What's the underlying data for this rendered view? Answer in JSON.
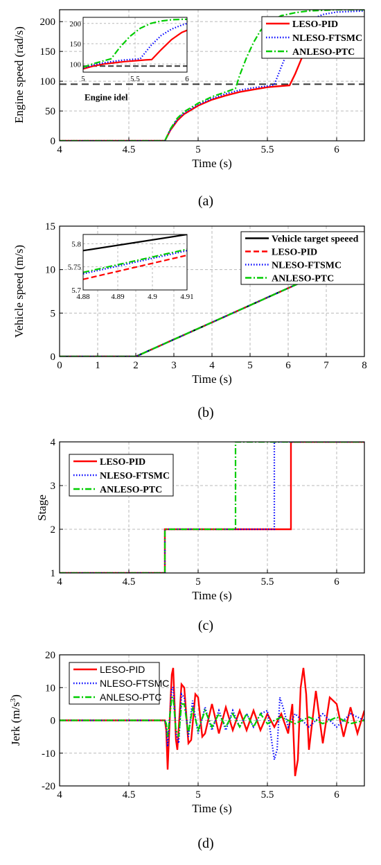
{
  "chart_data": [
    {
      "id": "a",
      "type": "line",
      "caption": "(a)",
      "xlabel": "Time (s)",
      "ylabel": "Engine speed (rad/s)",
      "xlim": [
        4,
        6.2
      ],
      "ylim": [
        0,
        220
      ],
      "xticks": [
        4,
        4.5,
        5,
        5.5,
        6
      ],
      "xtick_labels": [
        "4",
        "4.5",
        "5",
        "5.5",
        "6"
      ],
      "yticks": [
        0,
        50,
        100,
        150,
        200
      ],
      "ytick_labels": [
        "0",
        "50",
        "100",
        "150",
        "200"
      ],
      "grid": true,
      "legend_position": "top-right",
      "annotation": {
        "text": "Engine idel",
        "x": 4.18,
        "y": 68
      },
      "reference_line": {
        "y": 95,
        "style": "dashed",
        "color": "#333333"
      },
      "series": [
        {
          "name": "LESO-PID",
          "color": "#ff0000",
          "style": "solid",
          "x": [
            4.0,
            4.76,
            4.8,
            4.85,
            4.9,
            5.0,
            5.1,
            5.2,
            5.3,
            5.4,
            5.5,
            5.6,
            5.66,
            5.7,
            5.75,
            5.8,
            5.85,
            5.9,
            5.95,
            6.0,
            6.2
          ],
          "y": [
            0,
            0,
            18,
            34,
            45,
            59,
            69,
            76,
            82,
            86,
            90,
            92,
            93,
            112,
            140,
            163,
            180,
            192,
            200,
            205,
            207
          ]
        },
        {
          "name": "NLESO-FTSMC",
          "color": "#0000ff",
          "style": "dotted",
          "x": [
            4.0,
            4.76,
            4.8,
            4.85,
            4.9,
            5.0,
            5.1,
            5.2,
            5.3,
            5.4,
            5.5,
            5.55,
            5.6,
            5.65,
            5.7,
            5.75,
            5.8,
            5.9,
            6.0,
            6.2
          ],
          "y": [
            0,
            0,
            19,
            36,
            47,
            61,
            71,
            79,
            85,
            89,
            92,
            94,
            124,
            152,
            175,
            192,
            202,
            212,
            216,
            218
          ]
        },
        {
          "name": "ANLESO-PTC",
          "color": "#00cc00",
          "style": "dashdot",
          "x": [
            4.0,
            4.76,
            4.8,
            4.85,
            4.9,
            5.0,
            5.1,
            5.2,
            5.27,
            5.3,
            5.35,
            5.4,
            5.45,
            5.5,
            5.6,
            5.7,
            5.8,
            6.0,
            6.2
          ],
          "y": [
            0,
            0,
            20,
            38,
            49,
            63,
            74,
            82,
            88,
            110,
            140,
            165,
            185,
            198,
            210,
            215,
            218,
            220,
            220
          ]
        }
      ],
      "inset": {
        "xlim": [
          5,
          6
        ],
        "ylim": [
          80,
          215
        ],
        "xticks": [
          5,
          5.5,
          6
        ],
        "xtick_labels": [
          "5",
          "5.5",
          "6"
        ],
        "yticks": [
          100,
          150,
          200
        ],
        "ytick_labels": [
          "100",
          "150",
          "200"
        ],
        "reference_line": {
          "y": 95
        },
        "series": [
          {
            "name": "LESO-PID",
            "x": [
              5.0,
              5.1,
              5.2,
              5.3,
              5.4,
              5.5,
              5.6,
              5.66,
              5.75,
              5.85,
              5.95,
              6.0
            ],
            "y": [
              88,
              95,
              100,
              103,
              106,
              108,
              110,
              111,
              135,
              160,
              178,
              183
            ]
          },
          {
            "name": "NLESO-FTSMC",
            "x": [
              5.0,
              5.1,
              5.2,
              5.3,
              5.4,
              5.5,
              5.55,
              5.65,
              5.75,
              5.85,
              5.95,
              6.0
            ],
            "y": [
              90,
              98,
              103,
              107,
              110,
              112,
              113,
              145,
              170,
              186,
              196,
              200
            ]
          },
          {
            "name": "ANLESO-PTC",
            "x": [
              5.0,
              5.1,
              5.2,
              5.27,
              5.35,
              5.45,
              5.55,
              5.65,
              5.75,
              5.85,
              5.95,
              6.0
            ],
            "y": [
              92,
              101,
              108,
              113,
              140,
              168,
              188,
              200,
              206,
              209,
              210,
              210
            ]
          }
        ]
      }
    },
    {
      "id": "b",
      "type": "line",
      "caption": "(b)",
      "xlabel": "Time (s)",
      "ylabel": "Vehicle speed (m/s)",
      "xlim": [
        0,
        8
      ],
      "ylim": [
        0,
        15
      ],
      "xticks": [
        0,
        1,
        2,
        3,
        4,
        5,
        6,
        7,
        8
      ],
      "xtick_labels": [
        "0",
        "1",
        "2",
        "3",
        "4",
        "5",
        "6",
        "7",
        "8"
      ],
      "yticks": [
        0,
        5,
        10,
        15
      ],
      "ytick_labels": [
        "0",
        "5",
        "10",
        "15"
      ],
      "grid": true,
      "legend_position": "top-right",
      "series": [
        {
          "name": "Vehicle target speeed",
          "color": "#000000",
          "style": "solid",
          "x": [
            0,
            2,
            8
          ],
          "y": [
            0,
            0,
            11.8
          ]
        },
        {
          "name": "LESO-PID",
          "color": "#ff0000",
          "style": "dashed",
          "x": [
            0,
            2,
            8
          ],
          "y": [
            0,
            0,
            11.8
          ]
        },
        {
          "name": "NLESO-FTSMC",
          "color": "#0000ff",
          "style": "dotted",
          "x": [
            0,
            2,
            8
          ],
          "y": [
            0,
            0,
            11.8
          ]
        },
        {
          "name": "ANLESO-PTC",
          "color": "#00cc00",
          "style": "dashdot",
          "x": [
            0,
            2,
            8
          ],
          "y": [
            0,
            0,
            11.8
          ]
        }
      ],
      "inset": {
        "xlim": [
          4.88,
          4.91
        ],
        "ylim": [
          5.7,
          5.82
        ],
        "xticks": [
          4.88,
          4.89,
          4.9,
          4.91
        ],
        "xtick_labels": [
          "4.88",
          "4.89",
          "4.9",
          "4.91"
        ],
        "yticks": [
          5.7,
          5.75,
          5.8
        ],
        "ytick_labels": [
          "5.7",
          "5.75",
          "5.8"
        ],
        "series": [
          {
            "name": "Vehicle target speeed",
            "x": [
              4.88,
              4.91
            ],
            "y": [
              5.785,
              5.82
            ]
          },
          {
            "name": "LESO-PID",
            "x": [
              4.88,
              4.91
            ],
            "y": [
              5.723,
              5.775
            ]
          },
          {
            "name": "NLESO-FTSMC",
            "x": [
              4.88,
              4.91
            ],
            "y": [
              5.735,
              5.785
            ]
          },
          {
            "name": "ANLESO-PTC",
            "x": [
              4.88,
              4.91
            ],
            "y": [
              5.738,
              5.788
            ]
          }
        ]
      }
    },
    {
      "id": "c",
      "type": "line",
      "caption": "(c)",
      "xlabel": "Time (s)",
      "ylabel": "Stage",
      "xlim": [
        4,
        6.2
      ],
      "ylim": [
        1,
        4
      ],
      "xticks": [
        4,
        4.5,
        5,
        5.5,
        6
      ],
      "xtick_labels": [
        "4",
        "4.5",
        "5",
        "5.5",
        "6"
      ],
      "yticks": [
        1,
        2,
        3,
        4
      ],
      "ytick_labels": [
        "1",
        "2",
        "3",
        "4"
      ],
      "grid": true,
      "legend_position": "top-left",
      "series": [
        {
          "name": "LESO-PID",
          "color": "#ff0000",
          "style": "solid",
          "x": [
            4,
            4.76,
            4.76,
            5.67,
            5.67,
            6.2
          ],
          "y": [
            1,
            1,
            2,
            2,
            4,
            4
          ]
        },
        {
          "name": "NLESO-FTSMC",
          "color": "#0000ff",
          "style": "dotted",
          "x": [
            4,
            4.76,
            4.76,
            5.55,
            5.55,
            6.2
          ],
          "y": [
            1,
            1,
            2,
            2,
            4,
            4
          ]
        },
        {
          "name": "ANLESO-PTC",
          "color": "#00cc00",
          "style": "dashdot",
          "x": [
            4,
            4.76,
            4.76,
            5.27,
            5.27,
            6.2
          ],
          "y": [
            1,
            1,
            2,
            2,
            4,
            4
          ]
        }
      ]
    },
    {
      "id": "d",
      "type": "line",
      "caption": "(d)",
      "xlabel": "Time (s)",
      "ylabel": "Jerk (m/s",
      "ylabel_superscript": "3",
      "xlim": [
        4,
        6.2
      ],
      "ylim": [
        -20,
        20
      ],
      "xticks": [
        4,
        4.5,
        5,
        5.5,
        6
      ],
      "xtick_labels": [
        "4",
        "4.5",
        "5",
        "5.5",
        "6"
      ],
      "yticks": [
        -20,
        -10,
        0,
        10,
        20
      ],
      "ytick_labels": [
        "-20",
        "-10",
        "0",
        "10",
        "20"
      ],
      "grid": true,
      "legend_position": "top-left",
      "series": [
        {
          "name": "LESO-PID",
          "color": "#ff0000",
          "style": "solid",
          "x": [
            4.0,
            4.76,
            4.77,
            4.78,
            4.8,
            4.81,
            4.82,
            4.84,
            4.85,
            4.88,
            4.9,
            4.93,
            4.95,
            4.98,
            5.0,
            5.03,
            5.05,
            5.1,
            5.15,
            5.2,
            5.25,
            5.3,
            5.35,
            5.4,
            5.45,
            5.5,
            5.55,
            5.6,
            5.65,
            5.68,
            5.7,
            5.72,
            5.74,
            5.76,
            5.78,
            5.8,
            5.85,
            5.9,
            5.95,
            6.0,
            6.05,
            6.1,
            6.15,
            6.2
          ],
          "y": [
            0,
            0,
            -3,
            -15,
            5,
            14,
            16,
            -6,
            -9,
            11,
            10,
            -7,
            -6,
            8,
            7,
            -5,
            -4,
            5,
            -4,
            4,
            -3,
            3,
            -3,
            3,
            -3,
            2,
            -2,
            2,
            -4,
            5,
            -17,
            -12,
            10,
            16,
            8,
            -9,
            9,
            -7,
            7,
            5,
            -5,
            4,
            -4,
            3
          ]
        },
        {
          "name": "NLESO-FTSMC",
          "color": "#0000ff",
          "style": "dotted",
          "x": [
            4.0,
            4.76,
            4.77,
            4.78,
            4.8,
            4.81,
            4.82,
            4.84,
            4.86,
            4.88,
            4.9,
            4.93,
            4.96,
            5.0,
            5.05,
            5.1,
            5.15,
            5.2,
            5.25,
            5.3,
            5.35,
            5.4,
            5.45,
            5.5,
            5.53,
            5.55,
            5.57,
            5.59,
            5.62,
            5.65,
            5.7,
            5.8,
            5.9,
            6.0,
            6.1,
            6.2
          ],
          "y": [
            0,
            0,
            -2,
            -8,
            4,
            10,
            10,
            -4,
            -7,
            8,
            7,
            -5,
            6,
            -4,
            4,
            -3,
            3,
            -3,
            3,
            -2,
            2,
            -2,
            2,
            3,
            -6,
            -12,
            -9,
            7,
            3,
            -2,
            2,
            -2,
            2,
            -2,
            2,
            0
          ]
        },
        {
          "name": "ANLESO-PTC",
          "color": "#00cc00",
          "style": "dashdot",
          "x": [
            4.0,
            4.76,
            4.77,
            4.78,
            4.8,
            4.81,
            4.82,
            4.84,
            4.86,
            4.88,
            4.9,
            4.93,
            4.96,
            5.0,
            5.05,
            5.1,
            5.15,
            5.2,
            5.25,
            5.3,
            5.35,
            5.4,
            5.45,
            5.5,
            5.6,
            5.7,
            5.8,
            5.9,
            6.0,
            6.1,
            6.2
          ],
          "y": [
            0,
            0,
            -1,
            -5,
            3,
            7,
            7,
            -3,
            -5,
            5,
            5,
            -4,
            4,
            -3,
            3,
            -2,
            2,
            -2,
            2,
            -2,
            2,
            -2,
            2,
            -1,
            1,
            -1,
            1,
            -1,
            1,
            -1,
            0
          ]
        }
      ]
    }
  ]
}
